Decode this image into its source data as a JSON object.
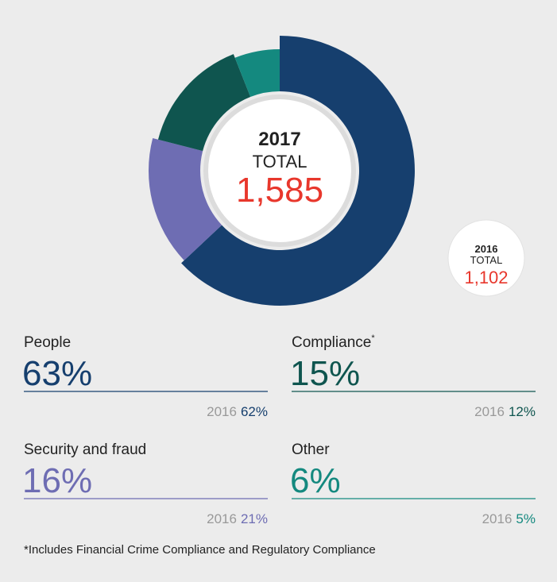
{
  "chart_data": {
    "type": "pie",
    "donut": true,
    "categories": [
      "People",
      "Security and fraud",
      "Compliance",
      "Other"
    ],
    "footnote_marker": "*",
    "footnote_marker_category": 2,
    "values": [
      63,
      16,
      15,
      6
    ],
    "value_labels": [
      "63%",
      "16%",
      "15%",
      "6%"
    ],
    "colors": [
      "#163f6e",
      "#6e6db3",
      "#0f554f",
      "#14897f"
    ],
    "center": {
      "year": "2017",
      "label": "TOTAL",
      "total": {
        "value": 1585,
        "label": "1,585"
      }
    },
    "previous": {
      "year": "2016",
      "label": "TOTAL",
      "total": {
        "value": 1102,
        "label": "1,102"
      },
      "values": [
        62,
        21,
        12,
        5
      ],
      "value_labels": [
        "62%",
        "21%",
        "12%",
        "5%"
      ]
    },
    "footnote": "*Includes Financial Crime Compliance and Regulatory Compliance"
  }
}
